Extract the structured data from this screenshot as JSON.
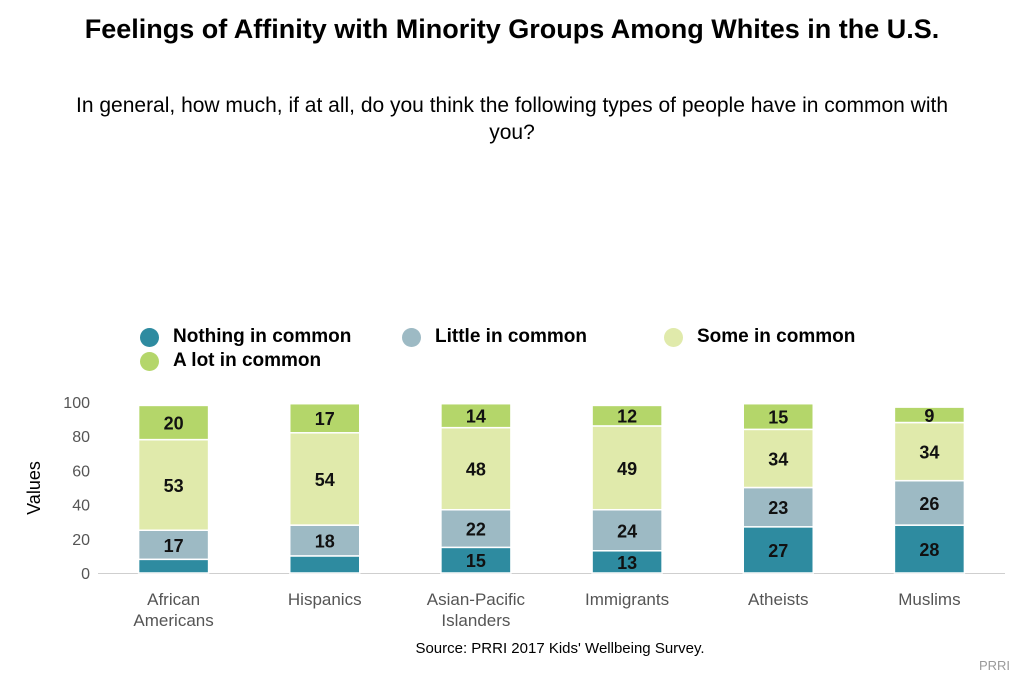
{
  "title": "Feelings of Affinity with Minority Groups Among Whites in the U.S.",
  "subtitle": "In general, how much, if at all, do you think the following types of people have in common with you?",
  "source": "Source: PRRI 2017 Kids' Wellbeing Survey.",
  "credit": "PRRI",
  "chart_data": {
    "type": "bar",
    "stacked": true,
    "categories": [
      [
        "African",
        "Americans"
      ],
      [
        "Hispanics"
      ],
      [
        "Asian-Pacific",
        "Islanders"
      ],
      [
        "Immigrants"
      ],
      [
        "Atheists"
      ],
      [
        "Muslims"
      ]
    ],
    "series": [
      {
        "name": "Nothing in common",
        "color": "#2e8ba0",
        "values": [
          8,
          10,
          15,
          13,
          27,
          28
        ],
        "labels": [
          "",
          "",
          "15",
          "13",
          "27",
          "28"
        ]
      },
      {
        "name": "Little in common",
        "color": "#9dbac4",
        "values": [
          17,
          18,
          22,
          24,
          23,
          26
        ],
        "labels": [
          "17",
          "18",
          "22",
          "24",
          "23",
          "26"
        ]
      },
      {
        "name": "Some in common",
        "color": "#e0eaab",
        "values": [
          53,
          54,
          48,
          49,
          34,
          34
        ],
        "labels": [
          "53",
          "54",
          "48",
          "49",
          "34",
          "34"
        ]
      },
      {
        "name": "A lot in common",
        "color": "#b4d66a",
        "values": [
          20,
          17,
          14,
          12,
          15,
          9
        ],
        "labels": [
          "20",
          "17",
          "14",
          "12",
          "15",
          "9"
        ]
      }
    ],
    "ylabel": "Values",
    "xlabel": "",
    "ylim": [
      0,
      100
    ],
    "yticks": [
      0,
      20,
      40,
      60,
      80,
      100
    ],
    "legend_position": "top"
  }
}
